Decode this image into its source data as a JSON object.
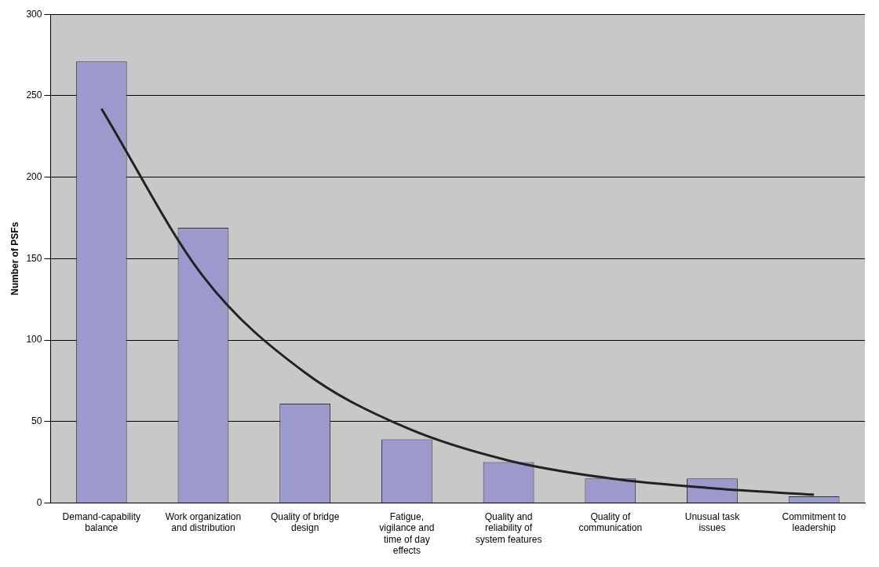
{
  "chart_data": {
    "type": "bar",
    "ylabel": "Number of PSFs",
    "categories": [
      "Demand-capability balance",
      "Work organization and distribution",
      "Quality of bridge design",
      "Fatigue, vigilance and time of day effects",
      "Quality and reliability of system features",
      "Quality of communication",
      "Unusual task issues",
      "Commitment to leadership"
    ],
    "series": [
      {
        "color": "#9c99cc",
        "values": [
          271,
          169,
          61,
          39,
          25,
          15,
          15,
          4
        ]
      },
      {
        "type": "line",
        "color": "#222222",
        "values": [
          242,
          139,
          80,
          46,
          26,
          15,
          9,
          5
        ]
      }
    ],
    "ylim": [
      0,
      300
    ],
    "yticks": [
      0,
      50,
      100,
      150,
      200,
      250,
      300
    ],
    "grid": "y",
    "legend": false,
    "marker": "none",
    "line_style": "solid"
  }
}
